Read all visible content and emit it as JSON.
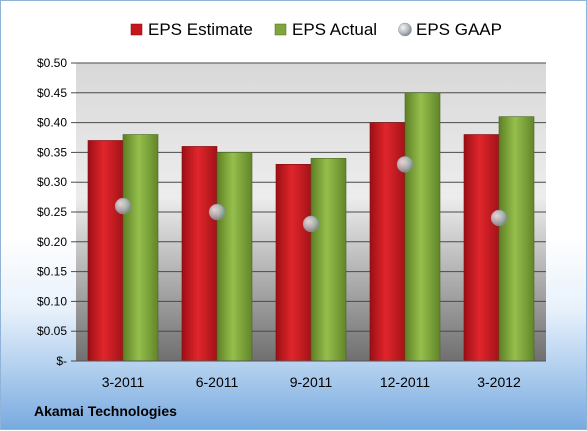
{
  "company": "Akamai Technologies",
  "chart_data": {
    "type": "bar",
    "categories": [
      "3-2011",
      "6-2011",
      "9-2011",
      "12-2011",
      "3-2012"
    ],
    "series": [
      {
        "name": "EPS Estimate",
        "kind": "bar",
        "color": "#c8161d",
        "values": [
          0.37,
          0.36,
          0.33,
          0.4,
          0.38
        ]
      },
      {
        "name": "EPS Actual",
        "kind": "bar",
        "color": "#7fa63b",
        "values": [
          0.38,
          0.35,
          0.34,
          0.45,
          0.41
        ]
      },
      {
        "name": "EPS GAAP",
        "kind": "marker",
        "color": "#b9c0c6",
        "values": [
          0.26,
          0.25,
          0.23,
          0.33,
          0.24
        ]
      }
    ],
    "yticks": [
      "$-",
      "$0.05",
      "$0.10",
      "$0.15",
      "$0.20",
      "$0.25",
      "$0.30",
      "$0.35",
      "$0.40",
      "$0.45",
      "$0.50"
    ],
    "ylim": [
      0,
      0.5
    ],
    "grid": true,
    "legend": "top"
  }
}
